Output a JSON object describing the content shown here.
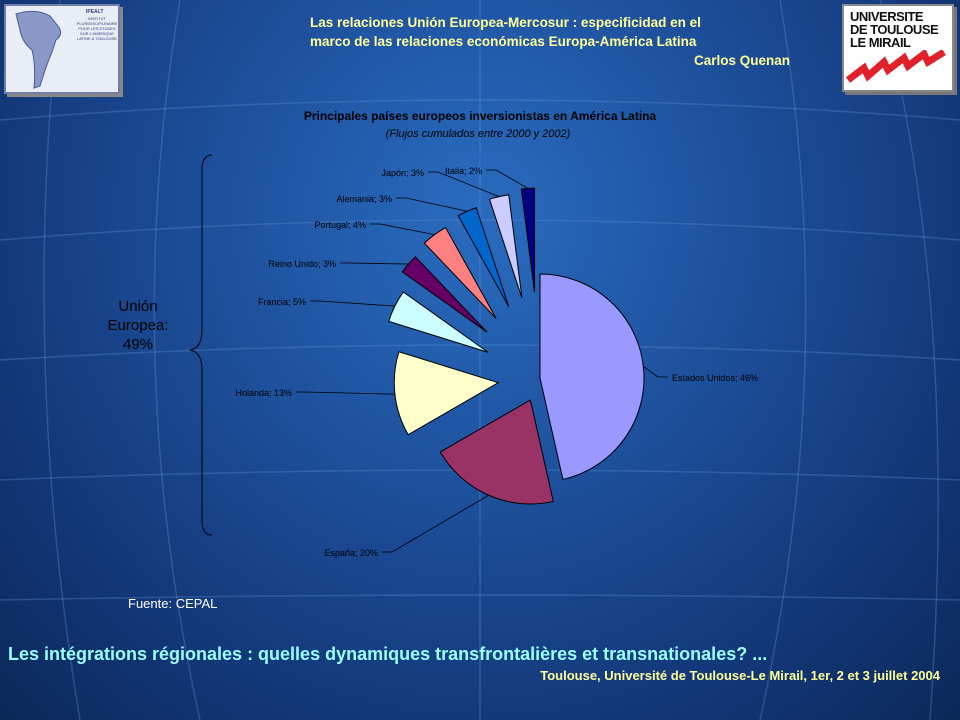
{
  "header": {
    "line1": "Las relaciones Unión Europea-Mercosur : especificidad en el",
    "line2": "marco de las relaciones económicas Europa-América Latina",
    "author": "Carlos Quenan"
  },
  "logo_left": {
    "title": "IPEALT",
    "subtitle": "INSTITUT PLURIDISCIPLINAIRE POUR LES ETUDES SUR L'AMERIQUE LATINE A TOULOUSE"
  },
  "logo_right": {
    "line1": "UNIVERSITE",
    "line2": "DE TOULOUSE",
    "line3": "LE MIRAIL"
  },
  "chart_data": {
    "type": "pie",
    "title": "Principales países europeos inversionistas en América Latina",
    "subtitle": "(Flujos cumulados entre 2000 y 2002)",
    "slices": [
      {
        "label": "Estados Unidos; 46%",
        "value": 46,
        "color": "#9999ff"
      },
      {
        "label": "España; 20%",
        "value": 20,
        "color": "#993366"
      },
      {
        "label": "Holanda; 13%",
        "value": 13,
        "color": "#ffffcc"
      },
      {
        "label": "Francia; 5%",
        "value": 5,
        "color": "#ccffff"
      },
      {
        "label": "Reino Unido; 3%",
        "value": 3,
        "color": "#660066"
      },
      {
        "label": "Portugal; 4%",
        "value": 4,
        "color": "#ff8080"
      },
      {
        "label": "Alemania; 3%",
        "value": 3,
        "color": "#0066cc"
      },
      {
        "label": "Japón; 3%",
        "value": 3,
        "color": "#ccccff"
      },
      {
        "label": "Italia; 2%",
        "value": 2,
        "color": "#000080"
      }
    ],
    "bracket_label": [
      "Unión",
      "Europea:",
      "49%"
    ]
  },
  "source": "Fuente: CEPAL",
  "footer": {
    "title": "Les intégrations régionales : quelles dynamiques transfrontalières et transnationales? ...",
    "subtitle": "Toulouse, Université de Toulouse-Le Mirail, 1er, 2 et 3 juillet 2004"
  }
}
